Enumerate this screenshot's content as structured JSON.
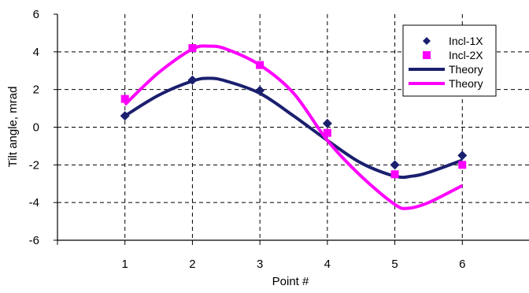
{
  "chart_data": {
    "type": "scatter",
    "title": "",
    "xlabel": "Point #",
    "ylabel": "Tilt angle, mrad",
    "xlim": [
      0,
      7
    ],
    "ylim": [
      -6,
      6
    ],
    "x_ticks": [
      1,
      2,
      3,
      4,
      5,
      6
    ],
    "y_ticks": [
      -6,
      -4,
      -2,
      0,
      2,
      4,
      6
    ],
    "grid": true,
    "legend_position": "top-right",
    "series": [
      {
        "name": "Incl-1X",
        "kind": "markers",
        "marker": "diamond",
        "color": "#1a1f6e",
        "x": [
          1,
          2,
          3,
          4,
          5,
          6
        ],
        "y": [
          0.6,
          2.5,
          1.95,
          0.2,
          -2.0,
          -1.5
        ]
      },
      {
        "name": "Incl-2X",
        "kind": "markers",
        "marker": "square",
        "color": "#ff00ff",
        "x": [
          1,
          2,
          3,
          4,
          5,
          6
        ],
        "y": [
          1.5,
          4.2,
          3.3,
          -0.3,
          -2.5,
          -2.0
        ]
      },
      {
        "name": "Theory",
        "kind": "line",
        "color": "#1a1f6e",
        "x": [
          1,
          1.5,
          2,
          2.25,
          2.5,
          3,
          3.5,
          4,
          4.5,
          5,
          5.25,
          5.5,
          6
        ],
        "y": [
          0.6,
          1.7,
          2.45,
          2.6,
          2.45,
          1.8,
          0.6,
          -0.7,
          -1.9,
          -2.6,
          -2.6,
          -2.4,
          -1.75
        ]
      },
      {
        "name": "Theory",
        "kind": "line",
        "color": "#ff00ff",
        "x": [
          1,
          1.5,
          2,
          2.25,
          2.5,
          3,
          3.5,
          4,
          4.5,
          5,
          5.2,
          5.5,
          6
        ],
        "y": [
          1.2,
          2.9,
          4.15,
          4.3,
          4.15,
          3.3,
          1.8,
          -0.7,
          -2.6,
          -4.1,
          -4.3,
          -4.0,
          -3.1
        ]
      }
    ]
  }
}
